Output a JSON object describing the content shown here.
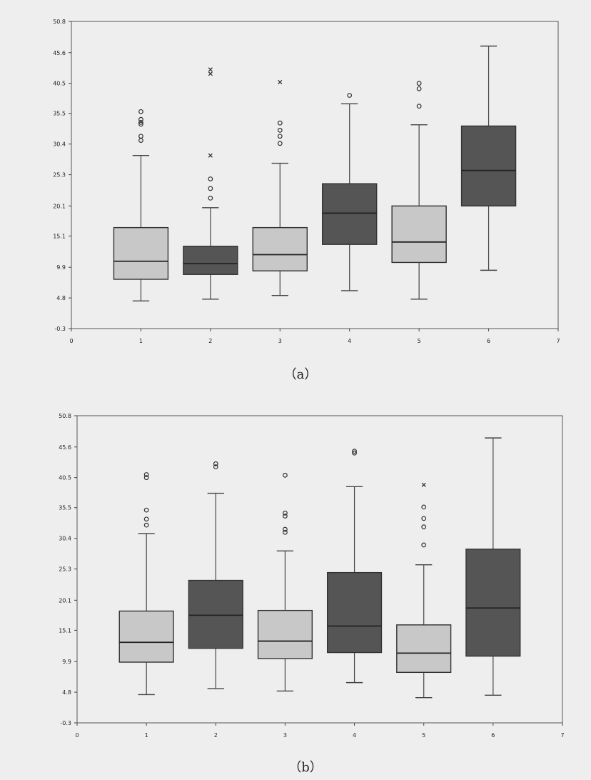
{
  "chart_data": [
    {
      "type": "box",
      "caption": "（a）",
      "xlim": [
        0,
        7
      ],
      "ylim": [
        -0.3,
        50.8
      ],
      "x_ticks": [
        "0",
        "1",
        "2",
        "3",
        "4",
        "5",
        "6",
        "7"
      ],
      "y_ticks": [
        "-0.3",
        "4.8",
        "9.9",
        "15.1",
        "20.1",
        "25.3",
        "30.4",
        "35.5",
        "40.5",
        "45.6",
        "50.8"
      ],
      "colors": {
        "light": "#c8c8c8",
        "dark": "#555555"
      },
      "boxes": [
        {
          "x": 1,
          "color": "light",
          "whisker_low": 4.3,
          "q1": 7.9,
          "median": 10.9,
          "q3": 16.5,
          "whisker_high": 28.5,
          "outliers_circle": [
            31.0,
            31.7,
            33.7,
            34.0,
            34.5,
            35.8
          ],
          "outliers_cross": []
        },
        {
          "x": 2,
          "color": "dark",
          "whisker_low": 4.6,
          "q1": 8.7,
          "median": 10.5,
          "q3": 13.4,
          "whisker_high": 19.8,
          "outliers_circle": [
            21.4,
            23.0,
            24.6
          ],
          "outliers_cross": [
            28.5,
            42.1,
            42.8
          ]
        },
        {
          "x": 3,
          "color": "light",
          "whisker_low": 5.2,
          "q1": 9.3,
          "median": 12.0,
          "q3": 16.5,
          "whisker_high": 27.2,
          "outliers_circle": [
            30.5,
            31.7,
            32.7,
            33.9
          ],
          "outliers_cross": [
            40.7
          ]
        },
        {
          "x": 4,
          "color": "dark",
          "whisker_low": 6.0,
          "q1": 13.7,
          "median": 18.9,
          "q3": 23.8,
          "whisker_high": 37.1,
          "outliers_circle": [
            38.5
          ],
          "outliers_cross": []
        },
        {
          "x": 5,
          "color": "light",
          "whisker_low": 4.6,
          "q1": 10.7,
          "median": 14.1,
          "q3": 20.1,
          "whisker_high": 33.6,
          "outliers_circle": [
            36.7,
            39.6,
            40.5
          ],
          "outliers_cross": []
        },
        {
          "x": 6,
          "color": "dark",
          "whisker_low": 9.4,
          "q1": 20.1,
          "median": 26.0,
          "q3": 33.4,
          "whisker_high": 46.7,
          "outliers_circle": [],
          "outliers_cross": []
        }
      ]
    },
    {
      "type": "box",
      "caption": "（b）",
      "xlim": [
        0,
        7
      ],
      "ylim": [
        -0.3,
        50.8
      ],
      "x_ticks": [
        "0",
        "1",
        "2",
        "3",
        "4",
        "5",
        "6",
        "7"
      ],
      "y_ticks": [
        "-0.3",
        "4.8",
        "9.9",
        "15.1",
        "20.1",
        "25.3",
        "30.4",
        "35.5",
        "40.5",
        "45.6",
        "50.8"
      ],
      "colors": {
        "light": "#c8c8c8",
        "dark": "#555555"
      },
      "boxes": [
        {
          "x": 1,
          "color": "light",
          "whisker_low": 4.4,
          "q1": 9.8,
          "median": 13.1,
          "q3": 18.3,
          "whisker_high": 31.2,
          "outliers_circle": [
            32.6,
            33.6,
            35.1,
            40.5,
            41.0
          ],
          "outliers_cross": []
        },
        {
          "x": 2,
          "color": "dark",
          "whisker_low": 5.4,
          "q1": 12.1,
          "median": 17.6,
          "q3": 23.4,
          "whisker_high": 37.9,
          "outliers_circle": [
            42.3,
            42.8
          ],
          "outliers_cross": []
        },
        {
          "x": 3,
          "color": "light",
          "whisker_low": 5.0,
          "q1": 10.4,
          "median": 13.3,
          "q3": 18.4,
          "whisker_high": 28.3,
          "outliers_circle": [
            31.4,
            31.9,
            34.1,
            34.6,
            40.9
          ],
          "outliers_cross": []
        },
        {
          "x": 4,
          "color": "dark",
          "whisker_low": 6.4,
          "q1": 11.4,
          "median": 15.8,
          "q3": 24.7,
          "whisker_high": 39.0,
          "outliers_circle": [
            44.6,
            44.9
          ],
          "outliers_cross": []
        },
        {
          "x": 5,
          "color": "light",
          "whisker_low": 3.9,
          "q1": 8.1,
          "median": 11.3,
          "q3": 16.0,
          "whisker_high": 26.0,
          "outliers_circle": [
            29.3,
            32.3,
            33.7,
            35.6
          ],
          "outliers_cross": [
            39.3
          ]
        },
        {
          "x": 6,
          "color": "dark",
          "whisker_low": 4.3,
          "q1": 10.8,
          "median": 18.8,
          "q3": 28.6,
          "whisker_high": 47.1,
          "outliers_circle": [],
          "outliers_cross": []
        }
      ]
    }
  ]
}
